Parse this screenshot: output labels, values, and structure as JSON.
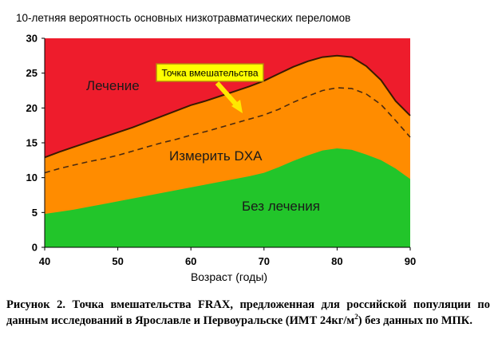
{
  "chart_data": {
    "type": "area",
    "title": "10-летняя вероятность основных низкотравматических переломов",
    "xlabel": "Возраст (годы)",
    "ylabel": "",
    "xlim": [
      40,
      90
    ],
    "ylim": [
      0,
      30
    ],
    "x_ticks": [
      40,
      50,
      60,
      70,
      80,
      90
    ],
    "y_ticks": [
      0,
      5,
      10,
      15,
      20,
      25,
      30
    ],
    "x": [
      40,
      42,
      44,
      46,
      48,
      50,
      52,
      54,
      56,
      58,
      60,
      62,
      64,
      66,
      68,
      70,
      72,
      74,
      76,
      78,
      80,
      82,
      84,
      86,
      88,
      90
    ],
    "series": [
      {
        "role": "lower_threshold",
        "values": [
          4.8,
          5.1,
          5.4,
          5.8,
          6.2,
          6.6,
          7.0,
          7.4,
          7.8,
          8.2,
          8.6,
          9.0,
          9.4,
          9.8,
          10.2,
          10.7,
          11.5,
          12.4,
          13.2,
          13.9,
          14.2,
          14.0,
          13.3,
          12.5,
          11.3,
          9.8
        ]
      },
      {
        "role": "intervention_threshold",
        "values": [
          10.7,
          11.3,
          11.8,
          12.3,
          12.7,
          13.2,
          13.8,
          14.4,
          15.0,
          15.5,
          16.1,
          16.6,
          17.2,
          17.8,
          18.4,
          19.0,
          19.8,
          20.8,
          21.7,
          22.5,
          22.9,
          22.8,
          22.0,
          20.5,
          18.2,
          15.8
        ]
      },
      {
        "role": "upper_threshold",
        "values": [
          12.9,
          13.7,
          14.4,
          15.1,
          15.8,
          16.5,
          17.2,
          18.0,
          18.8,
          19.6,
          20.4,
          21.0,
          21.7,
          22.4,
          23.1,
          23.9,
          24.9,
          25.9,
          26.7,
          27.3,
          27.5,
          27.3,
          26.0,
          24.0,
          21.0,
          18.9
        ]
      }
    ],
    "zones": [
      {
        "label": "Лечение",
        "color": "#ee1c2c"
      },
      {
        "label": "Измерить DXA",
        "color": "#ff8c00"
      },
      {
        "label": "Без лечения",
        "color": "#22c52a"
      }
    ],
    "callout": {
      "label": "Точка вмешательства",
      "box_color": "#ffff00",
      "border_color": "#b8860b",
      "arrow_color": "#ffe800"
    },
    "grid": false
  },
  "caption": {
    "part1": "Рисунок 2. Точка вмешательства FRAX, предложенная для российской популяции по данным исследований в Ярославле и Первоуральске (ИМТ 24кг/м",
    "sup": "2",
    "part2": ") без данных по МПК."
  }
}
